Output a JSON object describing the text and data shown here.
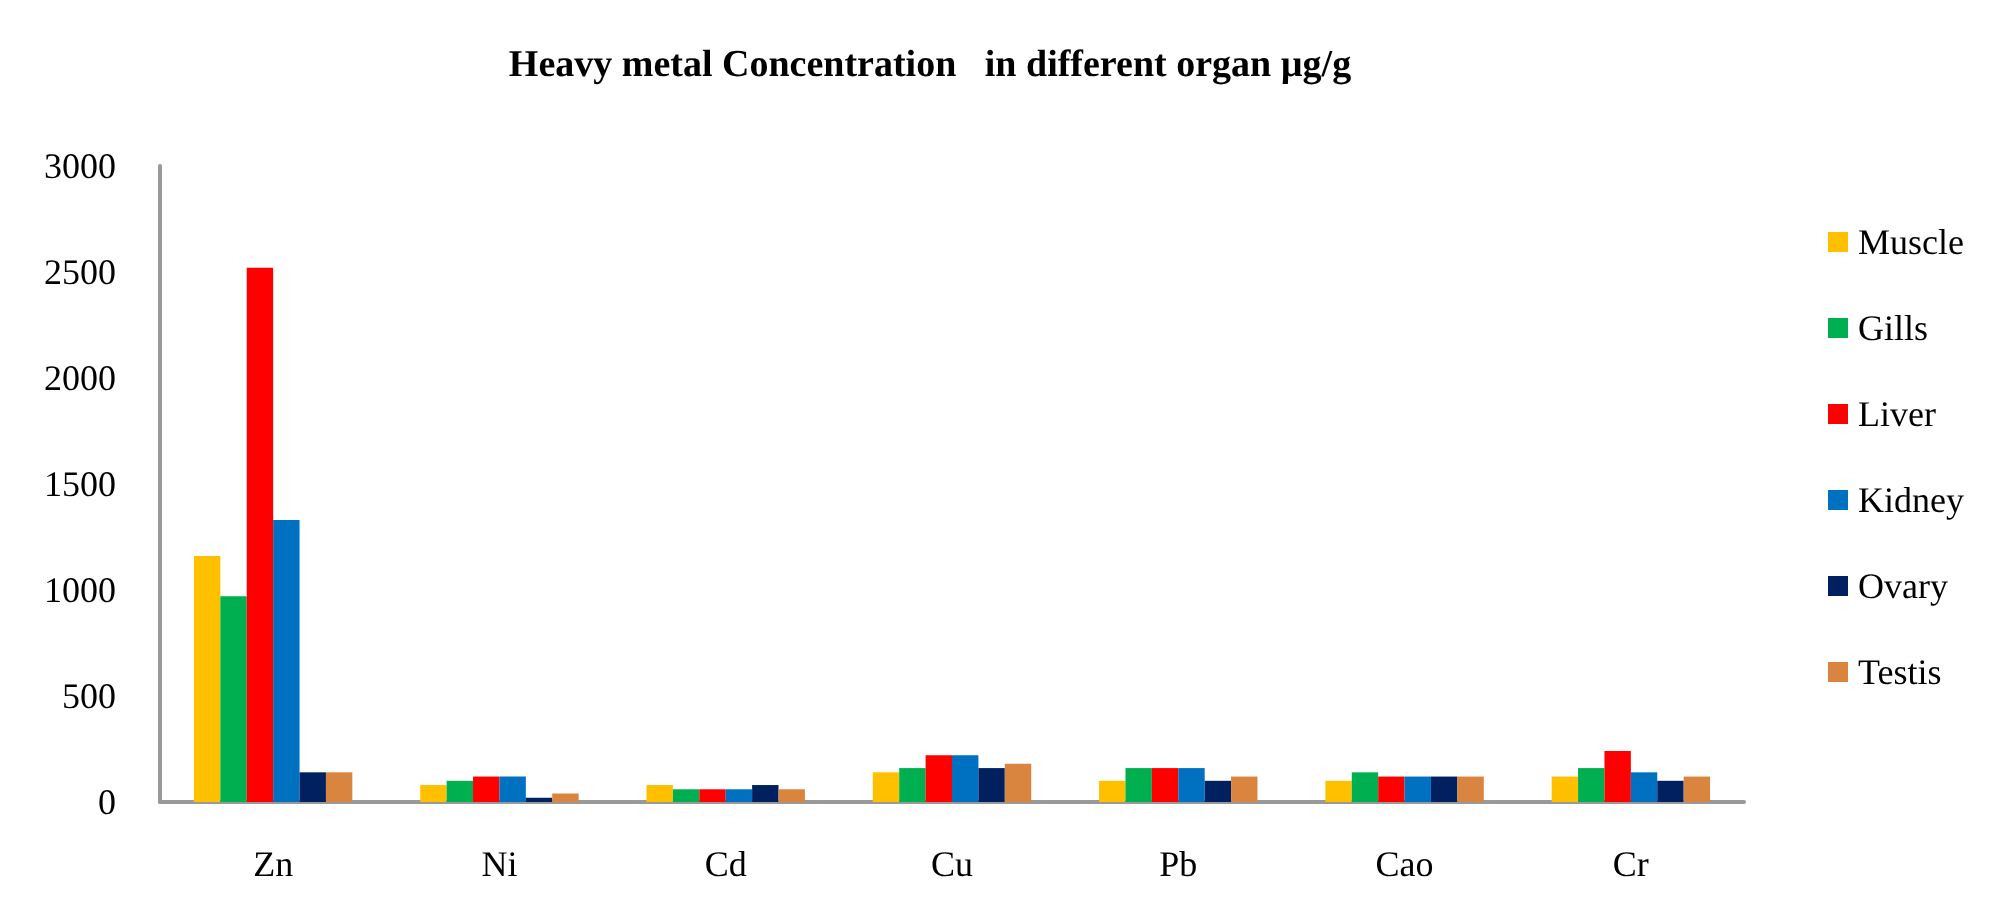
{
  "chart_data": {
    "type": "bar",
    "title": "Heavy metal Concentration   in different organ µg/g",
    "categories": [
      "Zn",
      "Ni",
      "Cd",
      "Cu",
      "Pb",
      "Cao",
      "Cr"
    ],
    "series": [
      {
        "name": "Muscle",
        "color": "#ffc000",
        "values": [
          1160,
          80,
          80,
          140,
          100,
          100,
          120
        ]
      },
      {
        "name": "Gills",
        "color": "#00b050",
        "values": [
          970,
          100,
          60,
          160,
          160,
          140,
          160
        ]
      },
      {
        "name": "Liver",
        "color": "#ff0000",
        "values": [
          2520,
          120,
          60,
          220,
          160,
          120,
          240
        ]
      },
      {
        "name": "Kidney",
        "color": "#0070c0",
        "values": [
          1330,
          120,
          60,
          220,
          160,
          120,
          140
        ]
      },
      {
        "name": "Ovary",
        "color": "#002060",
        "values": [
          140,
          20,
          80,
          160,
          100,
          120,
          100
        ]
      },
      {
        "name": "Testis",
        "color": "#d9843f",
        "values": [
          140,
          40,
          60,
          180,
          120,
          120,
          120
        ]
      }
    ],
    "ylim": [
      0,
      3000
    ],
    "yticks": [
      0,
      500,
      1000,
      1500,
      2000,
      2500,
      3000
    ],
    "grid": false,
    "legend": "right"
  }
}
